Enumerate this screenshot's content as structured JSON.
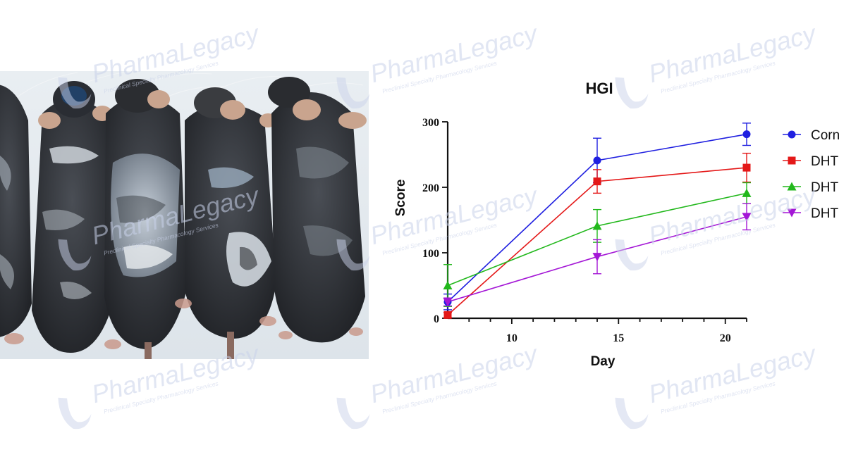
{
  "watermark": {
    "brand_plain": "Pharma",
    "brand_accent": "Legacy",
    "tagline": "Preclinical Specialty Pharmacology Services"
  },
  "photo": {
    "subject": "mice-hair-regrowth-photo"
  },
  "colors": {
    "Corn": "#1f1fe0",
    "DHT_red": "#e41818",
    "DHT_green": "#22b81c",
    "DHT_purple": "#a417d6"
  },
  "chart_data": {
    "type": "line",
    "title": "HGI",
    "xlabel": "Day",
    "ylabel": "Score",
    "xlim": [
      7,
      21
    ],
    "ylim": [
      0,
      300
    ],
    "xticks": [
      10,
      15,
      20
    ],
    "yticks": [
      0,
      100,
      200,
      300
    ],
    "x": [
      7,
      14,
      21
    ],
    "series": [
      {
        "name": "Corn",
        "marker": "circle",
        "color": "#1f1fe0",
        "values": [
          25,
          241,
          281
        ],
        "errors": [
          12,
          34,
          17
        ]
      },
      {
        "name": "DHT",
        "marker": "square",
        "color": "#e41818",
        "values": [
          5,
          209,
          230
        ],
        "errors": [
          4,
          18,
          22
        ]
      },
      {
        "name": "DHT",
        "marker": "triangle-up",
        "color": "#22b81c",
        "values": [
          50,
          141,
          191
        ],
        "errors": [
          32,
          25,
          16
        ]
      },
      {
        "name": "DHT",
        "marker": "triangle-down",
        "color": "#a417d6",
        "values": [
          25,
          94,
          155
        ],
        "errors": [
          6,
          26,
          20
        ]
      }
    ],
    "legend_position": "right",
    "grid": false
  }
}
